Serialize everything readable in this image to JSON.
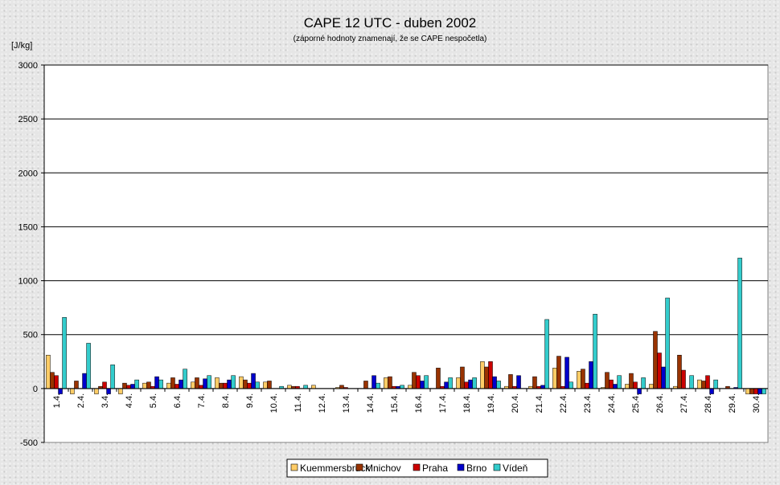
{
  "chart_data": {
    "type": "bar",
    "title": "CAPE 12 UTC - duben 2002",
    "subtitle": "(záporné hodnoty znamenají, že se CAPE nespočetla)",
    "ylabel": "[J/kg]",
    "xlabel": "",
    "ylim": [
      -500,
      3000
    ],
    "yticks": [
      -500,
      0,
      500,
      1000,
      1500,
      2000,
      2500,
      3000
    ],
    "grid": true,
    "legend_position": "bottom",
    "categories": [
      "1.4.",
      "2.4.",
      "3.4.",
      "4.4.",
      "5.4.",
      "6.4.",
      "7.4.",
      "8.4.",
      "9.4.",
      "10.4.",
      "11.4.",
      "12.4.",
      "13.4.",
      "14.4.",
      "15.4.",
      "16.4.",
      "17.4.",
      "18.4.",
      "19.4.",
      "20.4.",
      "21.4.",
      "22.4.",
      "23.4.",
      "24.4.",
      "25.4.",
      "26.4.",
      "27.4.",
      "28.4.",
      "29.4.",
      "30.4."
    ],
    "series": [
      {
        "name": "Kuemmersbruck",
        "color": "#ffcc66",
        "values": [
          310,
          -50,
          -50,
          -50,
          50,
          50,
          60,
          100,
          110,
          60,
          30,
          30,
          10,
          0,
          100,
          30,
          0,
          100,
          250,
          20,
          20,
          190,
          160,
          10,
          40,
          40,
          20,
          80,
          0,
          -50
        ]
      },
      {
        "name": "Mnichov",
        "color": "#993300",
        "values": [
          150,
          70,
          20,
          50,
          60,
          100,
          100,
          50,
          80,
          70,
          20,
          0,
          30,
          70,
          110,
          150,
          190,
          200,
          200,
          130,
          110,
          300,
          180,
          150,
          140,
          530,
          310,
          70,
          20,
          -50
        ]
      },
      {
        "name": "Praha",
        "color": "#cc0000",
        "values": [
          120,
          0,
          60,
          30,
          20,
          40,
          30,
          50,
          50,
          0,
          20,
          0,
          10,
          0,
          20,
          120,
          20,
          60,
          250,
          20,
          20,
          20,
          50,
          80,
          60,
          330,
          170,
          120,
          0,
          -50
        ]
      },
      {
        "name": "Brno",
        "color": "#0000cc",
        "values": [
          -50,
          140,
          -50,
          40,
          110,
          80,
          90,
          80,
          140,
          0,
          0,
          0,
          0,
          120,
          20,
          70,
          60,
          80,
          110,
          120,
          30,
          290,
          250,
          40,
          -50,
          200,
          0,
          -50,
          10,
          -50
        ]
      },
      {
        "name": "Vídeň",
        "color": "#33cccc",
        "values": [
          660,
          420,
          220,
          80,
          80,
          180,
          120,
          120,
          60,
          20,
          30,
          0,
          0,
          50,
          30,
          120,
          100,
          100,
          70,
          0,
          640,
          60,
          690,
          120,
          100,
          840,
          120,
          80,
          1210,
          -50
        ]
      }
    ]
  }
}
